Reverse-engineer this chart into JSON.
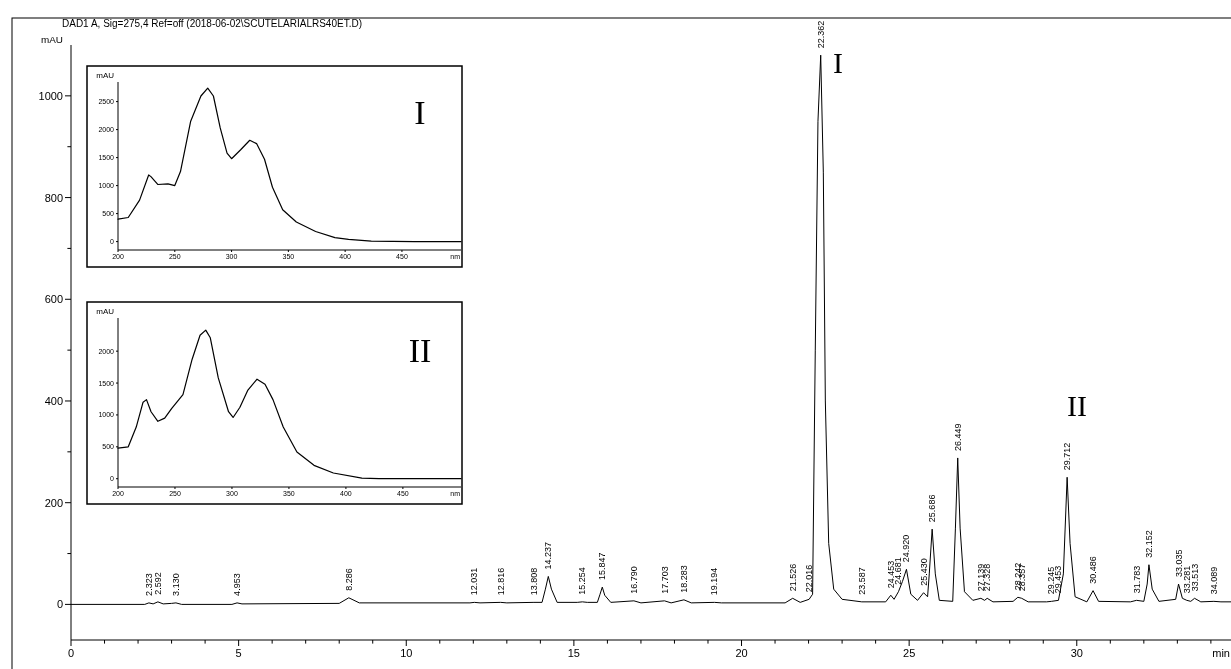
{
  "chart_data": [
    {
      "type": "line",
      "title": "DAD1 A, Sig=275,4 Ref=off (2018-06-02\\SCUTELARIALRS40ET.D)",
      "xlabel": "min",
      "ylabel": "mAU",
      "xlim": [
        0,
        34.6
      ],
      "ylim": [
        -70,
        1100
      ],
      "xticks": [
        0,
        {
          "value": 1,
          "label": null
        },
        {
          "value": 2,
          "label": null
        },
        {
          "value": 3,
          "label": null
        },
        {
          "value": 4,
          "label": null
        },
        5,
        {
          "value": 6,
          "label": null
        },
        {
          "value": 7,
          "label": null
        },
        {
          "value": 8,
          "label": null
        },
        {
          "value": 9,
          "label": null
        },
        10,
        {
          "value": 11,
          "label": null
        },
        {
          "value": 12,
          "label": null
        },
        {
          "value": 13,
          "label": null
        },
        {
          "value": 14,
          "label": null
        },
        15,
        {
          "value": 16,
          "label": null
        },
        {
          "value": 17,
          "label": null
        },
        {
          "value": 18,
          "label": null
        },
        {
          "value": 19,
          "label": null
        },
        20,
        {
          "value": 21,
          "label": null
        },
        {
          "value": 22,
          "label": null
        },
        {
          "value": 23,
          "label": null
        },
        {
          "value": 24,
          "label": null
        },
        25,
        {
          "value": 26,
          "label": null
        },
        {
          "value": 27,
          "label": null
        },
        {
          "value": 28,
          "label": null
        },
        {
          "value": 29,
          "label": null
        },
        30,
        {
          "value": 31,
          "label": null
        },
        {
          "value": 32,
          "label": null
        },
        {
          "value": 33,
          "label": null
        },
        {
          "value": 34,
          "label": null
        }
      ],
      "yticks": [
        0,
        {
          "value": 100,
          "label": null
        },
        200,
        {
          "value": 300,
          "label": null
        },
        400,
        {
          "value": 500,
          "label": null
        },
        600,
        {
          "value": 700,
          "label": null
        },
        800,
        {
          "value": 900,
          "label": null
        },
        1000
      ],
      "annotations": [
        "I",
        "II",
        {
          "text": "2.323",
          "x": 2.323,
          "y": 3
        },
        {
          "text": "2.592",
          "x": 2.592,
          "y": 5
        },
        {
          "text": "3.130",
          "x": 3.13,
          "y": 3
        },
        {
          "text": "4.953",
          "x": 4.953,
          "y": 3
        },
        {
          "text": "8.286",
          "x": 8.286,
          "y": 13
        },
        {
          "text": "12.031",
          "x": 12.031,
          "y": 4
        },
        {
          "text": "12.816",
          "x": 12.816,
          "y": 4
        },
        {
          "text": "13.808",
          "x": 13.808,
          "y": 4
        },
        {
          "text": "14.237",
          "x": 14.237,
          "y": 55
        },
        {
          "text": "15.254",
          "x": 15.254,
          "y": 5
        },
        {
          "text": "15.847",
          "x": 15.847,
          "y": 34
        },
        {
          "text": "16.790",
          "x": 16.79,
          "y": 7
        },
        {
          "text": "17.703",
          "x": 17.703,
          "y": 7
        },
        {
          "text": "18.283",
          "x": 18.283,
          "y": 9
        },
        {
          "text": "19.194",
          "x": 19.194,
          "y": 4
        },
        {
          "text": "21.526",
          "x": 21.526,
          "y": 12
        },
        {
          "text": "22.016",
          "x": 22.016,
          "y": 10
        },
        {
          "text": "22.362",
          "x": 22.362,
          "y": 1080
        },
        {
          "text": "23.587",
          "x": 23.587,
          "y": 5
        },
        {
          "text": "24.453",
          "x": 24.453,
          "y": 18
        },
        {
          "text": "24.681",
          "x": 24.681,
          "y": 25
        },
        {
          "text": "24.920",
          "x": 24.92,
          "y": 69
        },
        {
          "text": "25.430",
          "x": 25.43,
          "y": 23
        },
        {
          "text": "25.686",
          "x": 25.686,
          "y": 148
        },
        {
          "text": "26.449",
          "x": 26.449,
          "y": 288
        },
        {
          "text": "27.139",
          "x": 27.139,
          "y": 12
        },
        {
          "text": "27.328",
          "x": 27.328,
          "y": 12
        },
        {
          "text": "28.242",
          "x": 28.242,
          "y": 14
        },
        {
          "text": "28.357",
          "x": 28.357,
          "y": 12
        },
        {
          "text": "29.245",
          "x": 29.245,
          "y": 6
        },
        {
          "text": "29.453",
          "x": 29.453,
          "y": 8
        },
        {
          "text": "29.712",
          "x": 29.712,
          "y": 250
        },
        {
          "text": "30.486",
          "x": 30.486,
          "y": 27
        },
        {
          "text": "31.783",
          "x": 31.783,
          "y": 8
        },
        {
          "text": "32.152",
          "x": 32.152,
          "y": 78
        },
        {
          "text": "33.035",
          "x": 33.035,
          "y": 40
        },
        {
          "text": "33.281",
          "x": 33.281,
          "y": 8
        },
        {
          "text": "33.513",
          "x": 33.513,
          "y": 12
        },
        {
          "text": "34.089",
          "x": 34.089,
          "y": 6
        }
      ],
      "series": [
        {
          "color": "#000000",
          "x": [
            0,
            2.2,
            2.323,
            2.45,
            2.592,
            2.75,
            3.0,
            3.13,
            3.3,
            4.8,
            4.953,
            5.1,
            8.0,
            8.286,
            8.6,
            11.9,
            12.031,
            12.2,
            12.816,
            13.0,
            13.808,
            14.05,
            14.15,
            14.237,
            14.33,
            14.5,
            15.1,
            15.254,
            15.4,
            15.7,
            15.78,
            15.847,
            15.92,
            16.1,
            16.79,
            17.0,
            17.703,
            17.9,
            18.283,
            18.5,
            19.194,
            19.4,
            21.3,
            21.526,
            21.75,
            22.016,
            22.12,
            22.2,
            22.28,
            22.362,
            22.44,
            22.5,
            22.6,
            22.75,
            23.0,
            23.587,
            24.3,
            24.453,
            24.55,
            24.681,
            24.8,
            24.92,
            25.05,
            25.25,
            25.43,
            25.55,
            25.6,
            25.686,
            25.78,
            25.9,
            26.3,
            26.38,
            26.449,
            26.52,
            26.65,
            26.9,
            27.139,
            27.25,
            27.328,
            27.5,
            28.1,
            28.242,
            28.357,
            28.55,
            29.1,
            29.245,
            29.453,
            29.6,
            29.712,
            29.8,
            29.95,
            30.3,
            30.486,
            30.65,
            31.6,
            31.783,
            32.0,
            32.1,
            32.152,
            32.25,
            32.45,
            32.95,
            33.035,
            33.15,
            33.281,
            33.4,
            33.513,
            33.7,
            34.089,
            34.3,
            34.6
          ],
          "values": [
            0,
            0,
            3,
            1,
            5,
            1,
            2,
            3,
            0,
            0,
            3,
            1,
            2,
            13,
            3,
            3,
            4,
            3,
            4,
            3,
            4,
            4,
            30,
            55,
            30,
            4,
            4,
            5,
            4,
            4,
            20,
            34,
            18,
            4,
            7,
            3,
            7,
            3,
            9,
            3,
            4,
            3,
            3,
            12,
            4,
            10,
            20,
            500,
            950,
            1080,
            850,
            400,
            120,
            30,
            10,
            5,
            5,
            18,
            10,
            25,
            45,
            69,
            20,
            8,
            23,
            15,
            60,
            148,
            60,
            8,
            6,
            150,
            288,
            150,
            25,
            8,
            12,
            8,
            12,
            5,
            6,
            14,
            12,
            5,
            5,
            6,
            8,
            60,
            250,
            120,
            15,
            5,
            27,
            6,
            5,
            8,
            6,
            40,
            78,
            30,
            6,
            10,
            40,
            12,
            8,
            6,
            12,
            5,
            6,
            5,
            5
          ]
        }
      ]
    },
    {
      "type": "line",
      "ylabel": "mAU",
      "xlabel": "nm",
      "xlim": [
        200,
        502
      ],
      "ylim": [
        -150,
        2850
      ],
      "xticks": [
        200,
        250,
        300,
        350,
        400,
        450
      ],
      "yticks": [
        0,
        500,
        1000,
        1500,
        2000,
        2500
      ],
      "annotations": [
        "I"
      ],
      "series": [
        {
          "color": "#000000",
          "x": [
            200,
            209,
            219,
            227,
            229,
            235,
            244,
            250,
            255,
            264,
            273,
            279,
            284,
            290,
            296,
            300,
            308,
            316,
            322,
            329,
            336,
            345,
            357,
            374,
            391,
            403,
            423,
            461,
            502
          ],
          "values": [
            400,
            430,
            740,
            1190,
            1160,
            1020,
            1030,
            1000,
            1250,
            2150,
            2600,
            2740,
            2600,
            2030,
            1580,
            1480,
            1640,
            1810,
            1750,
            1470,
            970,
            570,
            350,
            180,
            70,
            40,
            10,
            0,
            0
          ]
        }
      ]
    },
    {
      "type": "line",
      "ylabel": "mAU",
      "xlabel": "nm",
      "xlim": [
        200,
        501
      ],
      "ylim": [
        -130,
        2520
      ],
      "xticks": [
        200,
        250,
        300,
        350,
        400,
        450
      ],
      "yticks": [
        0,
        500,
        1000,
        1500,
        2000
      ],
      "annotations": [
        "II"
      ],
      "series": [
        {
          "color": "#000000",
          "x": [
            200,
            209,
            216,
            222,
            225,
            229,
            235,
            241,
            247,
            257,
            265,
            272,
            277,
            281,
            288,
            297,
            301,
            307,
            314,
            322,
            329,
            336,
            345,
            357,
            372,
            389,
            414,
            429,
            501
          ],
          "values": [
            480,
            500,
            810,
            1200,
            1240,
            1050,
            900,
            950,
            1100,
            1320,
            1870,
            2250,
            2330,
            2210,
            1580,
            1050,
            960,
            1120,
            1390,
            1560,
            1480,
            1240,
            810,
            420,
            210,
            90,
            10,
            0,
            0
          ]
        }
      ]
    }
  ]
}
